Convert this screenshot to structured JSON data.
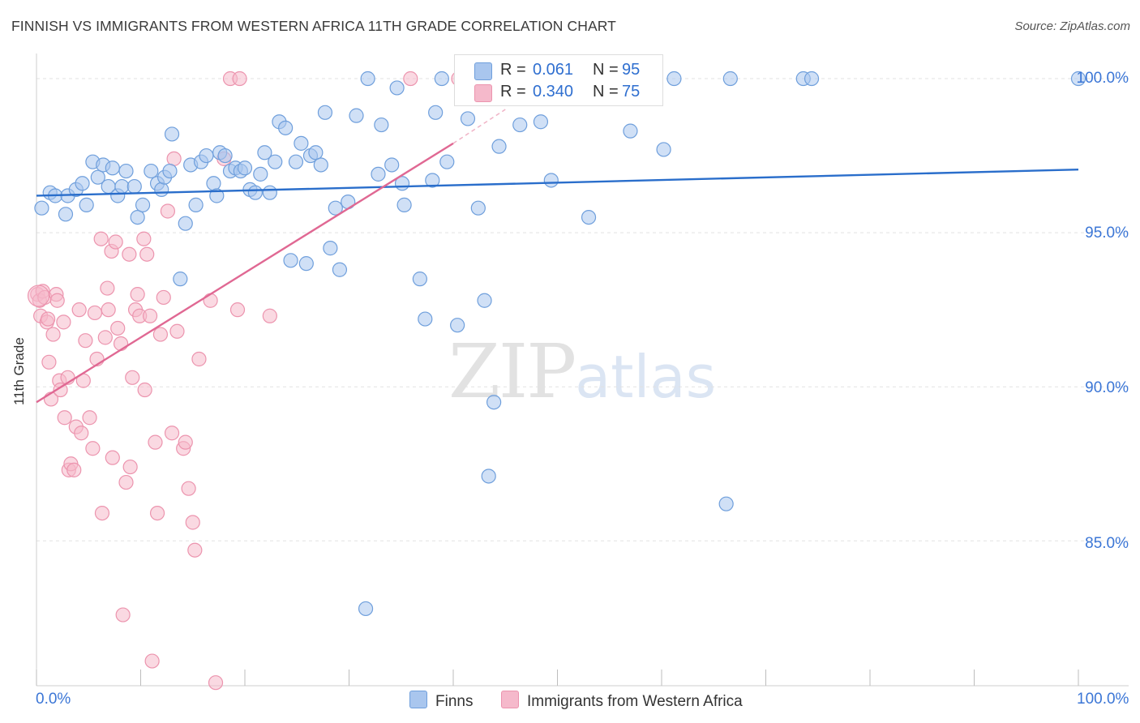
{
  "title": "FINNISH VS IMMIGRANTS FROM WESTERN AFRICA 11TH GRADE CORRELATION CHART",
  "source": "Source: ZipAtlas.com",
  "watermark": {
    "zip": "ZIP",
    "atlas": "atlas"
  },
  "legend_top": {
    "rows": [
      {
        "r_label": "R =",
        "r_value": "0.061",
        "n_label": "N =",
        "n_value": "95"
      },
      {
        "r_label": "R =",
        "r_value": "0.340",
        "n_label": "N =",
        "n_value": "75"
      }
    ]
  },
  "legend_bottom": [
    "Finns",
    "Immigrants from Western Africa"
  ],
  "colors": {
    "blue_fill": "#a9c6ee",
    "blue_stroke": "#6f9fdc",
    "blue_line": "#2a6ecb",
    "pink_fill": "#f5b9cb",
    "pink_stroke": "#ec94ae",
    "pink_line": "#e06893",
    "tick_text": "#3b76d6",
    "grid": "#e2e2e2"
  },
  "chart_data": {
    "type": "scatter",
    "title": "FINNISH VS IMMIGRANTS FROM WESTERN AFRICA 11TH GRADE CORRELATION CHART",
    "xlabel": "",
    "ylabel": "11th Grade",
    "xlim": [
      0,
      100
    ],
    "ylim": [
      80.3,
      100.5
    ],
    "x_tick_labels": [
      "0.0%",
      "100.0%"
    ],
    "y_ticks": [
      85,
      90,
      95,
      100
    ],
    "y_tick_labels": [
      "85.0%",
      "90.0%",
      "95.0%",
      "100.0%"
    ],
    "grid": true,
    "legend_position": "top-center",
    "series": [
      {
        "name": "Finns",
        "R": 0.061,
        "N": 95,
        "trend": {
          "x": [
            0,
            100
          ],
          "y": [
            96.2,
            97.05
          ]
        },
        "points": [
          [
            0.5,
            95.8
          ],
          [
            1.3,
            96.3
          ],
          [
            1.8,
            96.2
          ],
          [
            2.8,
            95.6
          ],
          [
            3.0,
            96.2
          ],
          [
            3.8,
            96.4
          ],
          [
            4.4,
            96.6
          ],
          [
            4.8,
            95.9
          ],
          [
            5.4,
            97.3
          ],
          [
            5.9,
            96.8
          ],
          [
            6.4,
            97.2
          ],
          [
            6.9,
            96.5
          ],
          [
            7.3,
            97.1
          ],
          [
            7.8,
            96.2
          ],
          [
            8.2,
            96.5
          ],
          [
            8.6,
            97.0
          ],
          [
            9.4,
            96.5
          ],
          [
            9.7,
            95.5
          ],
          [
            10.2,
            95.9
          ],
          [
            11.0,
            97.0
          ],
          [
            11.6,
            96.6
          ],
          [
            12.0,
            96.4
          ],
          [
            12.3,
            96.8
          ],
          [
            12.8,
            97.0
          ],
          [
            13.0,
            98.2
          ],
          [
            13.8,
            93.5
          ],
          [
            14.3,
            95.3
          ],
          [
            14.8,
            97.2
          ],
          [
            15.3,
            95.9
          ],
          [
            15.8,
            97.3
          ],
          [
            16.3,
            97.5
          ],
          [
            17.0,
            96.6
          ],
          [
            17.3,
            96.2
          ],
          [
            17.6,
            97.6
          ],
          [
            18.1,
            97.5
          ],
          [
            18.6,
            97.0
          ],
          [
            19.1,
            97.1
          ],
          [
            19.6,
            97.0
          ],
          [
            20.0,
            97.1
          ],
          [
            20.5,
            96.4
          ],
          [
            21.0,
            96.3
          ],
          [
            21.5,
            96.9
          ],
          [
            21.9,
            97.6
          ],
          [
            22.4,
            96.3
          ],
          [
            22.9,
            97.3
          ],
          [
            23.3,
            98.6
          ],
          [
            23.9,
            98.4
          ],
          [
            24.4,
            94.1
          ],
          [
            24.9,
            97.3
          ],
          [
            25.4,
            97.9
          ],
          [
            25.9,
            94.0
          ],
          [
            26.3,
            97.5
          ],
          [
            26.8,
            97.6
          ],
          [
            27.3,
            97.2
          ],
          [
            27.7,
            98.9
          ],
          [
            28.2,
            94.5
          ],
          [
            28.7,
            95.8
          ],
          [
            29.1,
            93.8
          ],
          [
            29.9,
            96.0
          ],
          [
            30.7,
            98.8
          ],
          [
            31.6,
            82.8
          ],
          [
            31.8,
            100.0
          ],
          [
            32.8,
            96.9
          ],
          [
            33.1,
            98.5
          ],
          [
            34.1,
            97.2
          ],
          [
            34.6,
            99.7
          ],
          [
            35.1,
            96.6
          ],
          [
            35.3,
            95.9
          ],
          [
            36.8,
            93.5
          ],
          [
            37.3,
            92.2
          ],
          [
            38.0,
            96.7
          ],
          [
            38.3,
            98.9
          ],
          [
            38.9,
            100.0
          ],
          [
            39.4,
            97.3
          ],
          [
            40.4,
            92.0
          ],
          [
            41.4,
            98.7
          ],
          [
            42.4,
            95.8
          ],
          [
            43.0,
            92.8
          ],
          [
            43.4,
            87.1
          ],
          [
            43.9,
            89.5
          ],
          [
            44.4,
            97.8
          ],
          [
            46.4,
            98.5
          ],
          [
            47.4,
            100.0
          ],
          [
            48.4,
            98.6
          ],
          [
            49.4,
            96.7
          ],
          [
            53.0,
            95.5
          ],
          [
            56.6,
            100.0
          ],
          [
            57.0,
            98.3
          ],
          [
            60.2,
            97.7
          ],
          [
            61.2,
            100.0
          ],
          [
            66.2,
            86.2
          ],
          [
            66.6,
            100.0
          ],
          [
            73.6,
            100.0
          ],
          [
            74.4,
            100.0
          ],
          [
            100.0,
            100.0
          ]
        ]
      },
      {
        "name": "Immigrants from Western Africa",
        "R": 0.34,
        "N": 75,
        "trend": {
          "x": [
            0,
            40
          ],
          "y": [
            89.5,
            97.9
          ]
        },
        "trend_dashed_extension": {
          "x": [
            40,
            45
          ],
          "y": [
            97.9,
            99.0
          ]
        },
        "points": [
          [
            0.1,
            93.0
          ],
          [
            0.3,
            92.8
          ],
          [
            0.4,
            92.3
          ],
          [
            0.6,
            93.1
          ],
          [
            0.8,
            92.9
          ],
          [
            1.0,
            92.1
          ],
          [
            1.1,
            92.2
          ],
          [
            1.2,
            90.8
          ],
          [
            1.4,
            89.6
          ],
          [
            1.6,
            91.7
          ],
          [
            1.9,
            93.0
          ],
          [
            2.0,
            92.8
          ],
          [
            2.2,
            90.2
          ],
          [
            2.3,
            89.9
          ],
          [
            2.6,
            92.1
          ],
          [
            2.7,
            89.0
          ],
          [
            3.0,
            90.3
          ],
          [
            3.1,
            87.3
          ],
          [
            3.3,
            87.5
          ],
          [
            3.6,
            87.3
          ],
          [
            3.8,
            88.7
          ],
          [
            4.1,
            92.5
          ],
          [
            4.3,
            88.5
          ],
          [
            4.5,
            90.2
          ],
          [
            4.7,
            91.5
          ],
          [
            5.1,
            89.0
          ],
          [
            5.4,
            88.0
          ],
          [
            5.6,
            92.4
          ],
          [
            5.8,
            90.9
          ],
          [
            6.2,
            94.8
          ],
          [
            6.3,
            85.9
          ],
          [
            6.6,
            91.6
          ],
          [
            6.8,
            93.2
          ],
          [
            6.9,
            92.5
          ],
          [
            7.2,
            94.4
          ],
          [
            7.3,
            87.7
          ],
          [
            7.6,
            94.7
          ],
          [
            7.8,
            91.9
          ],
          [
            8.1,
            91.4
          ],
          [
            8.3,
            82.6
          ],
          [
            8.6,
            86.9
          ],
          [
            8.9,
            94.3
          ],
          [
            9.0,
            87.4
          ],
          [
            9.2,
            90.3
          ],
          [
            9.5,
            92.5
          ],
          [
            9.7,
            93.0
          ],
          [
            9.9,
            92.3
          ],
          [
            10.3,
            94.8
          ],
          [
            10.4,
            89.9
          ],
          [
            10.6,
            94.3
          ],
          [
            10.9,
            92.3
          ],
          [
            11.1,
            81.1
          ],
          [
            11.4,
            88.2
          ],
          [
            11.6,
            85.9
          ],
          [
            11.9,
            91.7
          ],
          [
            12.2,
            92.9
          ],
          [
            12.6,
            95.7
          ],
          [
            13.0,
            88.5
          ],
          [
            13.2,
            97.4
          ],
          [
            13.5,
            91.8
          ],
          [
            14.1,
            88.0
          ],
          [
            14.3,
            88.2
          ],
          [
            14.6,
            86.7
          ],
          [
            15.0,
            85.6
          ],
          [
            15.2,
            84.7
          ],
          [
            15.6,
            90.9
          ],
          [
            16.7,
            92.8
          ],
          [
            17.2,
            80.4
          ],
          [
            18.0,
            97.4
          ],
          [
            18.6,
            100.0
          ],
          [
            19.3,
            92.5
          ],
          [
            19.5,
            100.0
          ],
          [
            22.4,
            92.3
          ],
          [
            35.9,
            100.0
          ],
          [
            40.5,
            100.0
          ]
        ]
      }
    ]
  }
}
